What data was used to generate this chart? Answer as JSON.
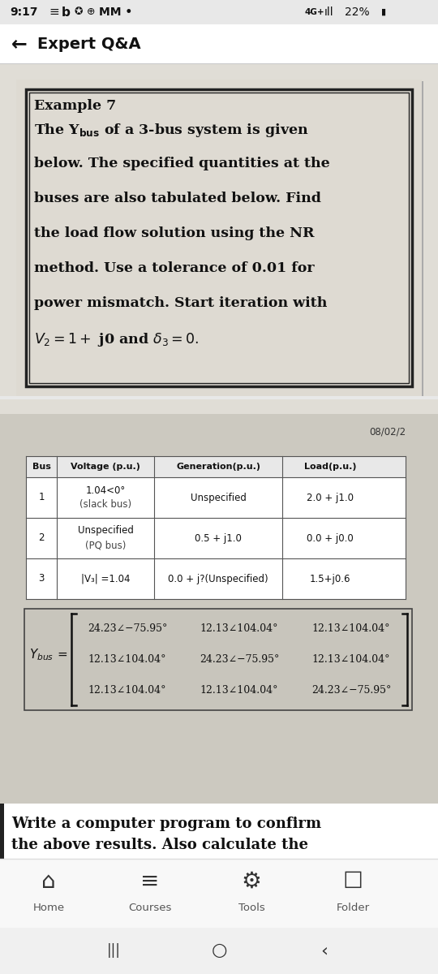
{
  "bg_color": "#e0ddd6",
  "status_bar_bg": "#e8e8e8",
  "white_color": "#ffffff",
  "dark_color": "#1a1a1a",
  "card1_bg": "#dedad2",
  "card2_bg": "#ccc9c0",
  "matrix_box_bg": "#c8c5bc",
  "bottom_text_bg": "#f5f5f5",
  "nav_bar_bg": "#f8f8f8",
  "android_nav_bg": "#f0f0f0",
  "table_bg": "#ffffff",
  "table_header_bg": "#eeeeee",
  "date_label": "08/02/2",
  "table_headers": [
    "Bus",
    "Voltage (p.u.)",
    "Generation(p.u.)",
    "Load(p.u.)"
  ],
  "table_rows": [
    [
      "1",
      "1.04<0°\n(slack bus)",
      "Unspecified",
      "2.0 + j1.0"
    ],
    [
      "2",
      "Unspecified\n(PQ bus)",
      "0.5 + j1.0",
      "0.0 + j0.0"
    ],
    [
      "3",
      "|V₃| =1.04",
      "0.0 + j?(Unspecified)",
      "1.5+j0.6"
    ]
  ],
  "matrix": [
    [
      "24.23∠−75.95°",
      "12.13∠104.04°",
      "12.13∠104.04°"
    ],
    [
      "12.13∠104.04°",
      "24.23∠−75.95°",
      "12.13∠104.04°"
    ],
    [
      "12.13∠104.04°",
      "12.13∠104.04°",
      "24.23∠−75.95°"
    ]
  ],
  "nav_bar_items": [
    "Home",
    "Courses",
    "Tools",
    "Folder"
  ]
}
